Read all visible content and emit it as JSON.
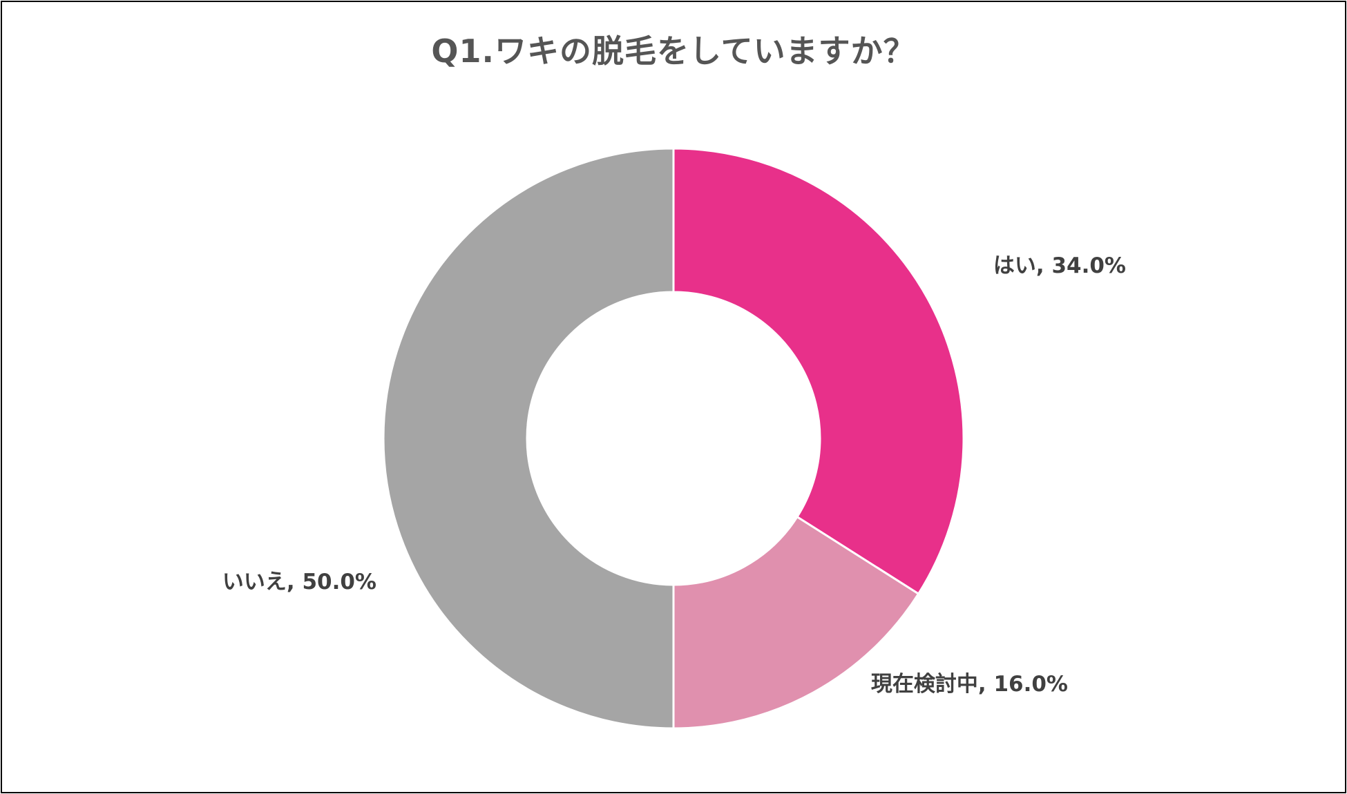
{
  "chart_data": {
    "type": "pie",
    "title": "Q1.ワキの脱毛をしていますか？",
    "donut": true,
    "start": "top, clockwise",
    "slices": [
      {
        "label": "はい",
        "value": 34.0,
        "display": "はい, 34.0%",
        "color": "#E8308A"
      },
      {
        "label": "現在検討中",
        "value": 16.0,
        "display": "現在検討中, 16.0%",
        "color": "#E090AE"
      },
      {
        "label": "いいえ",
        "value": 50.0,
        "display": "いいえ, 50.0%",
        "color": "#A5A5A5"
      }
    ]
  }
}
